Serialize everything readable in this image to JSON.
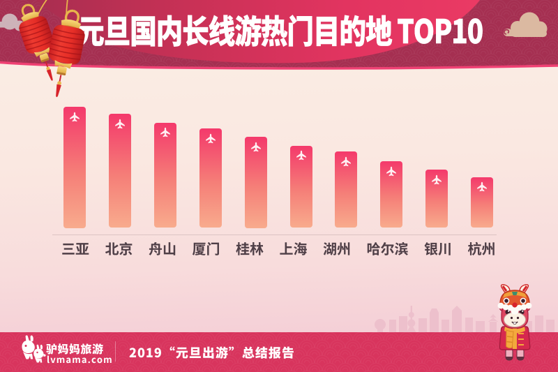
{
  "header": {
    "title": "元旦国内长线游热门目的地 TOP10"
  },
  "chart_data": {
    "type": "bar",
    "title": "元旦国内长线游热门目的地 TOP10",
    "categories": [
      "三亚",
      "北京",
      "舟山",
      "厦门",
      "桂林",
      "上海",
      "湖州",
      "哈尔滨",
      "银川",
      "杭州"
    ],
    "values": [
      100,
      94,
      87,
      82,
      75,
      68,
      63,
      55,
      48,
      42
    ],
    "value_note": "relative popularity (estimated from bar heights, max=100); no numeric axis shown",
    "xlabel": "",
    "ylabel": "",
    "ylim": [
      0,
      100
    ],
    "grid": false,
    "legend": false,
    "bar_icon": "airplane-icon",
    "style": {
      "bar_top_color": "#F4396B",
      "bar_mid_color": "#F57F78",
      "bar_bottom_color": "#F8AB8D",
      "label_color": "#4F3F47"
    }
  },
  "footer": {
    "brand_name": "驴妈妈旅游",
    "brand_domain": "lvmama.com",
    "report_title": "2019“元旦出游”总结报告"
  },
  "colors": {
    "header_base": "#A52F51",
    "ribbon_left": "#AE2F53",
    "ribbon_right": "#EE3E6B",
    "footer_band": "#D8345D",
    "title_color": "#FFFFFF"
  },
  "decorations": {
    "top_left": "red-lanterns-icon",
    "top_right": "auspicious-cloud-icon",
    "bottom_right": "donkey-mascot-lion-dance-icon",
    "background_bottom": "city-skyline-silhouette"
  }
}
